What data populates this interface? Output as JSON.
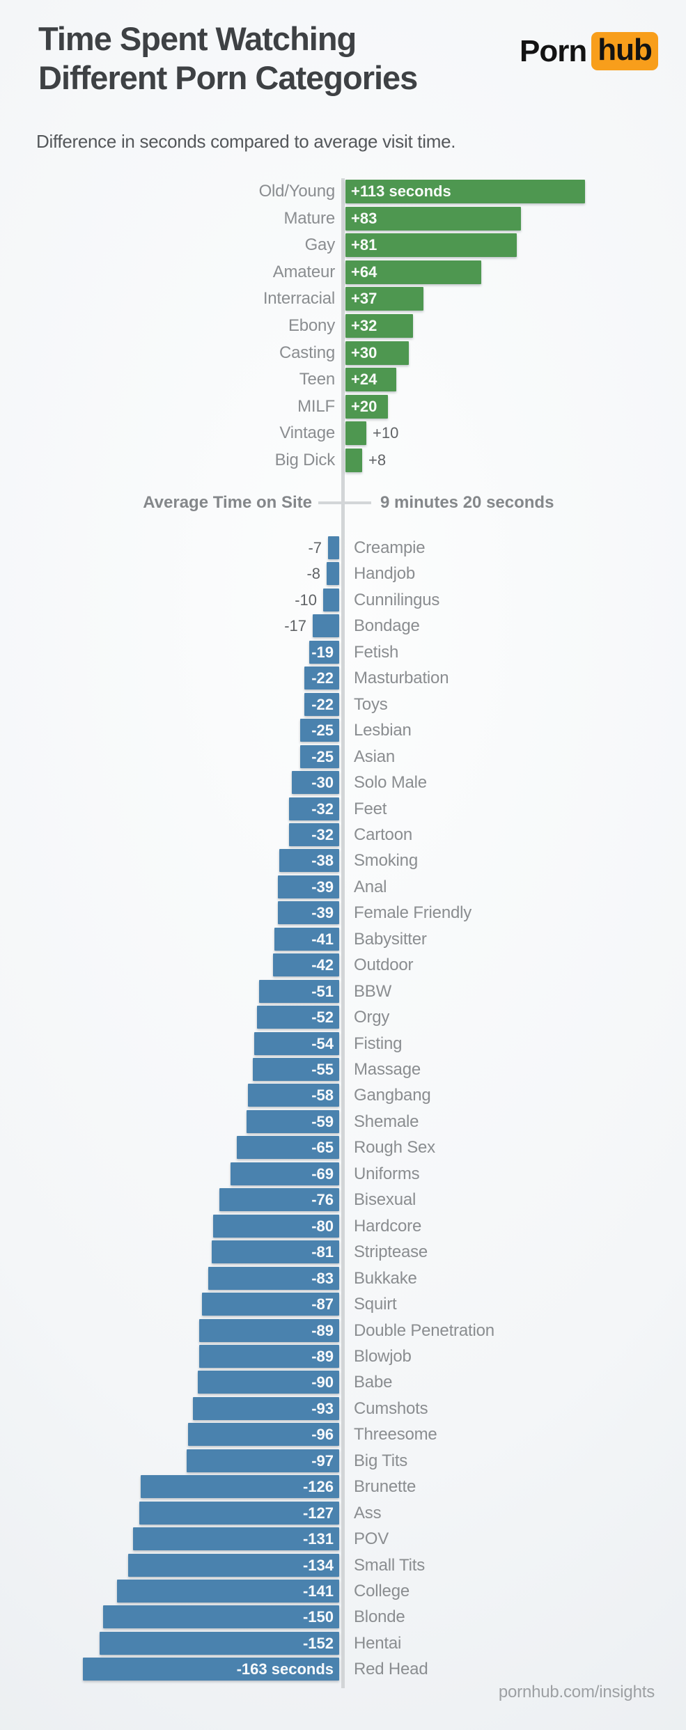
{
  "header": {
    "title_line1": "Time Spent Watching",
    "title_line2": "Different Porn Categories",
    "subtitle": "Difference in seconds compared to average visit time.",
    "logo": {
      "part1": "Porn",
      "part2": "hub"
    }
  },
  "baseline": {
    "label": "Average Time on Site",
    "value": "9 minutes 20 seconds"
  },
  "footer": {
    "text": "pornhub.com/insights"
  },
  "colors": {
    "positive_bar": "#4e9750",
    "negative_bar": "#4a82ae",
    "logo_badge": "#f89e1b",
    "axis_line": "#d2d5d7"
  },
  "chart_data": {
    "type": "bar",
    "orientation": "horizontal-diverging",
    "title": "Time Spent Watching Different Porn Categories",
    "subtitle": "Difference in seconds compared to average visit time.",
    "unit": "seconds vs average visit time",
    "baseline_label": "Average Time on Site",
    "baseline_value": "9 minutes 20 seconds",
    "positive": [
      {
        "category": "Old/Young",
        "value": 113,
        "label": "+113 seconds"
      },
      {
        "category": "Mature",
        "value": 83,
        "label": "+83"
      },
      {
        "category": "Gay",
        "value": 81,
        "label": "+81"
      },
      {
        "category": "Amateur",
        "value": 64,
        "label": "+64"
      },
      {
        "category": "Interracial",
        "value": 37,
        "label": "+37"
      },
      {
        "category": "Ebony",
        "value": 32,
        "label": "+32"
      },
      {
        "category": "Casting",
        "value": 30,
        "label": "+30"
      },
      {
        "category": "Teen",
        "value": 24,
        "label": "+24"
      },
      {
        "category": "MILF",
        "value": 20,
        "label": "+20"
      },
      {
        "category": "Vintage",
        "value": 10,
        "label": "+10"
      },
      {
        "category": "Big Dick",
        "value": 8,
        "label": "+8"
      }
    ],
    "negative": [
      {
        "category": "Creampie",
        "value": -7,
        "label": "-7"
      },
      {
        "category": "Handjob",
        "value": -8,
        "label": "-8"
      },
      {
        "category": "Cunnilingus",
        "value": -10,
        "label": "-10"
      },
      {
        "category": "Bondage",
        "value": -17,
        "label": "-17"
      },
      {
        "category": "Fetish",
        "value": -19,
        "label": "-19"
      },
      {
        "category": "Masturbation",
        "value": -22,
        "label": "-22"
      },
      {
        "category": "Toys",
        "value": -22,
        "label": "-22"
      },
      {
        "category": "Lesbian",
        "value": -25,
        "label": "-25"
      },
      {
        "category": "Asian",
        "value": -25,
        "label": "-25"
      },
      {
        "category": "Solo Male",
        "value": -30,
        "label": "-30"
      },
      {
        "category": "Feet",
        "value": -32,
        "label": "-32"
      },
      {
        "category": "Cartoon",
        "value": -32,
        "label": "-32"
      },
      {
        "category": "Smoking",
        "value": -38,
        "label": "-38"
      },
      {
        "category": "Anal",
        "value": -39,
        "label": "-39"
      },
      {
        "category": "Female Friendly",
        "value": -39,
        "label": "-39"
      },
      {
        "category": "Babysitter",
        "value": -41,
        "label": "-41"
      },
      {
        "category": "Outdoor",
        "value": -42,
        "label": "-42"
      },
      {
        "category": "BBW",
        "value": -51,
        "label": "-51"
      },
      {
        "category": "Orgy",
        "value": -52,
        "label": "-52"
      },
      {
        "category": "Fisting",
        "value": -54,
        "label": "-54"
      },
      {
        "category": "Massage",
        "value": -55,
        "label": "-55"
      },
      {
        "category": "Gangbang",
        "value": -58,
        "label": "-58"
      },
      {
        "category": "Shemale",
        "value": -59,
        "label": "-59"
      },
      {
        "category": "Rough Sex",
        "value": -65,
        "label": "-65"
      },
      {
        "category": "Uniforms",
        "value": -69,
        "label": "-69"
      },
      {
        "category": "Bisexual",
        "value": -76,
        "label": "-76"
      },
      {
        "category": "Hardcore",
        "value": -80,
        "label": "-80"
      },
      {
        "category": "Striptease",
        "value": -81,
        "label": "-81"
      },
      {
        "category": "Bukkake",
        "value": -83,
        "label": "-83"
      },
      {
        "category": "Squirt",
        "value": -87,
        "label": "-87"
      },
      {
        "category": "Double Penetration",
        "value": -89,
        "label": "-89"
      },
      {
        "category": "Blowjob",
        "value": -89,
        "label": "-89"
      },
      {
        "category": "Babe",
        "value": -90,
        "label": "-90"
      },
      {
        "category": "Cumshots",
        "value": -93,
        "label": "-93"
      },
      {
        "category": "Threesome",
        "value": -96,
        "label": "-96"
      },
      {
        "category": "Big Tits",
        "value": -97,
        "label": "-97"
      },
      {
        "category": "Brunette",
        "value": -126,
        "label": "-126"
      },
      {
        "category": "Ass",
        "value": -127,
        "label": "-127"
      },
      {
        "category": "POV",
        "value": -131,
        "label": "-131"
      },
      {
        "category": "Small Tits",
        "value": -134,
        "label": "-134"
      },
      {
        "category": "College",
        "value": -141,
        "label": "-141"
      },
      {
        "category": "Blonde",
        "value": -150,
        "label": "-150"
      },
      {
        "category": "Hentai",
        "value": -152,
        "label": "-152"
      },
      {
        "category": "Red Head",
        "value": -163,
        "label": "-163 seconds"
      }
    ]
  }
}
